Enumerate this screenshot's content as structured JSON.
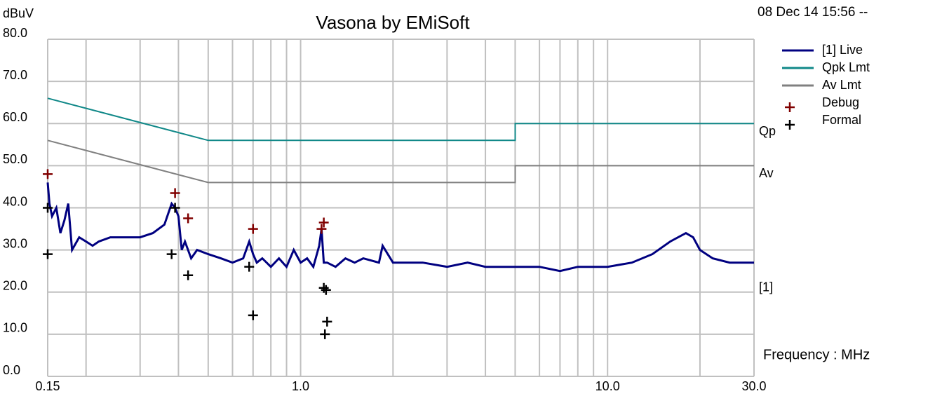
{
  "chart_data": {
    "type": "line",
    "title": "Vasona by EMiSoft",
    "timestamp": "08 Dec 14 15:56 --",
    "y_label": "dBuV",
    "x_label": "Frequency : MHz",
    "x_log": true,
    "grid": true,
    "xlim": [
      0.15,
      30
    ],
    "ylim": [
      0,
      80
    ],
    "xticks": [
      0.15,
      {
        "value": 1,
        "label": "1.0"
      },
      {
        "value": 10,
        "label": "10.0"
      },
      {
        "value": 30,
        "label": "30.0"
      }
    ],
    "xminor": [
      0.2,
      0.3,
      0.4,
      0.5,
      0.6,
      0.7,
      0.8,
      0.9,
      2,
      3,
      4,
      5,
      6,
      7,
      8,
      9,
      20
    ],
    "yticks": [
      {
        "value": 0,
        "label": "0.0"
      },
      {
        "value": 10,
        "label": "10.0"
      },
      {
        "value": 20,
        "label": "20.0"
      },
      {
        "value": 30,
        "label": "30.0"
      },
      {
        "value": 40,
        "label": "40.0"
      },
      {
        "value": 50,
        "label": "50.0"
      },
      {
        "value": 60,
        "label": "60.0"
      },
      {
        "value": 70,
        "label": "70.0"
      },
      {
        "value": 80,
        "label": "80.0"
      }
    ],
    "annotations": [
      {
        "text": "Qp",
        "y": 60
      },
      {
        "text": "Av",
        "y": 50
      },
      {
        "text": "[1]",
        "y": 23
      }
    ],
    "series": [
      {
        "name": "[1] Live",
        "color": "#000080",
        "style": "line",
        "x": [
          0.15,
          0.152,
          0.155,
          0.16,
          0.165,
          0.17,
          0.175,
          0.18,
          0.19,
          0.2,
          0.21,
          0.22,
          0.24,
          0.26,
          0.28,
          0.3,
          0.33,
          0.36,
          0.38,
          0.39,
          0.4,
          0.41,
          0.42,
          0.44,
          0.46,
          0.5,
          0.55,
          0.6,
          0.65,
          0.68,
          0.7,
          0.72,
          0.75,
          0.8,
          0.85,
          0.9,
          0.95,
          1.0,
          1.05,
          1.1,
          1.15,
          1.17,
          1.19,
          1.22,
          1.3,
          1.4,
          1.5,
          1.6,
          1.8,
          1.85,
          2.0,
          2.5,
          3,
          3.5,
          4,
          5,
          6,
          7,
          8,
          10,
          12,
          14,
          16,
          18,
          19,
          20,
          22,
          25,
          28,
          30
        ],
        "values": [
          46,
          41,
          38,
          40,
          34,
          37,
          41,
          30,
          33,
          32,
          31,
          32,
          33,
          33,
          33,
          33,
          34,
          36,
          41,
          40,
          38,
          30,
          32,
          28,
          30,
          29,
          28,
          27,
          28,
          32,
          29,
          27,
          28,
          26,
          28,
          26,
          30,
          27,
          28,
          26,
          31,
          35,
          27,
          27,
          26,
          28,
          27,
          28,
          27,
          31,
          27,
          27,
          26,
          27,
          26,
          26,
          26,
          25,
          26,
          26,
          27,
          29,
          32,
          34,
          33,
          30,
          28,
          27,
          27,
          27
        ]
      },
      {
        "name": "Qpk Lmt",
        "color": "#108888",
        "style": "line",
        "x": [
          0.15,
          0.5,
          5,
          5,
          30
        ],
        "values": [
          66,
          56,
          56,
          60,
          60
        ]
      },
      {
        "name": "Av Lmt",
        "color": "#808080",
        "style": "line",
        "x": [
          0.15,
          0.5,
          5,
          5,
          30
        ],
        "values": [
          56,
          46,
          46,
          50,
          50
        ]
      },
      {
        "name": "Debug",
        "color": "#800000",
        "style": "marker",
        "x": [
          0.15,
          0.39,
          0.43,
          0.7,
          1.17,
          1.19
        ],
        "values": [
          48,
          43.5,
          37.5,
          35,
          35,
          36.5
        ]
      },
      {
        "name": "Formal",
        "color": "#000000",
        "style": "marker",
        "x": [
          0.15,
          0.15,
          0.38,
          0.39,
          0.43,
          0.68,
          0.7,
          1.19,
          1.21,
          1.22,
          1.2
        ],
        "values": [
          29,
          40,
          29,
          40,
          24,
          26,
          14.5,
          21,
          20.5,
          13,
          10
        ]
      }
    ]
  }
}
